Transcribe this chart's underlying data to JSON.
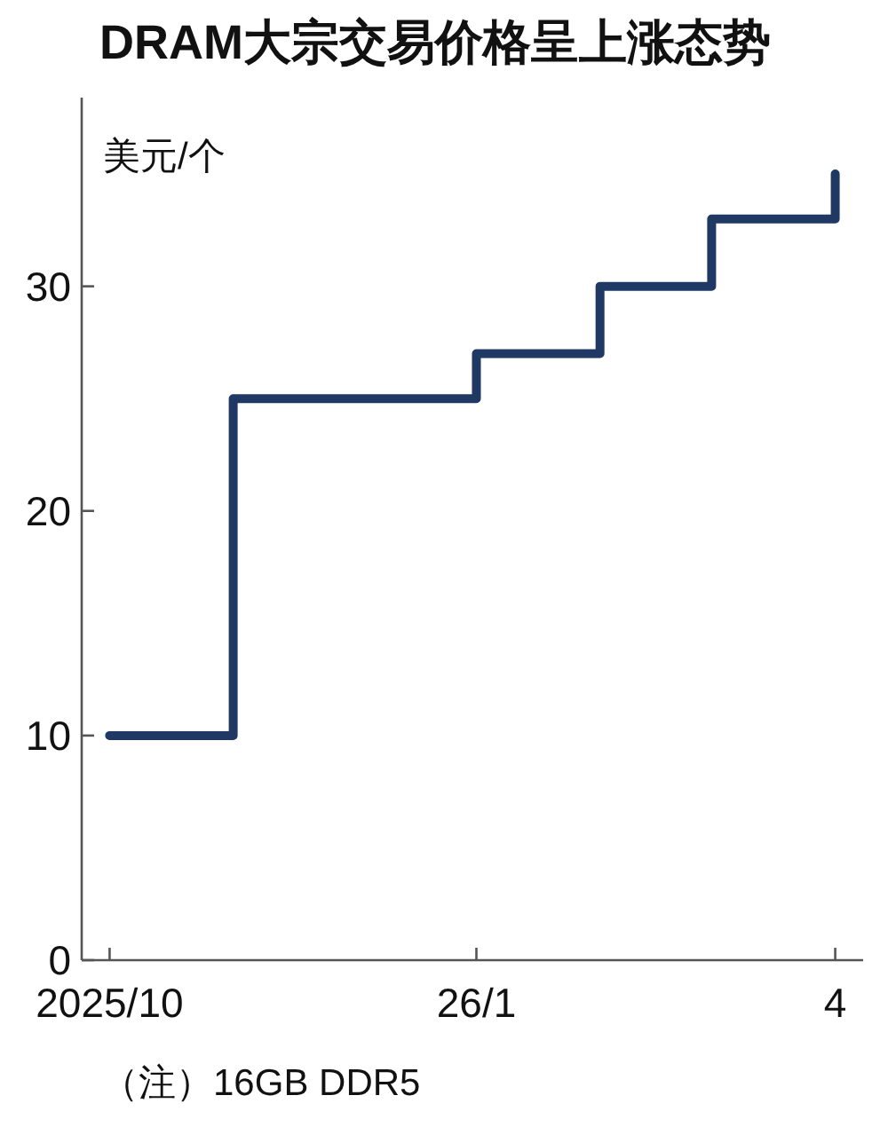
{
  "chart_data": {
    "type": "step",
    "title": "DRAM大宗交易价格呈上涨态势",
    "ylabel": "美元/个",
    "annotations": [
      "（注）16GB DDR5"
    ],
    "x": [
      "2025-10",
      "2025-11",
      "2026-01",
      "2026-02",
      "2026-03",
      "2026-04"
    ],
    "values": [
      10,
      25,
      27,
      30,
      33,
      35
    ],
    "color": "#1f3864",
    "xlim": [
      "2025-09-24",
      "2026-04-08"
    ],
    "ylim": [
      0,
      38.4
    ],
    "xticks": [
      {
        "value": "2025-10",
        "label": "2025/10"
      },
      {
        "value": "2026-01",
        "label": "26/1"
      },
      {
        "value": "2026-04",
        "label": "4"
      }
    ],
    "yticks": [
      0,
      10,
      20,
      30
    ]
  }
}
